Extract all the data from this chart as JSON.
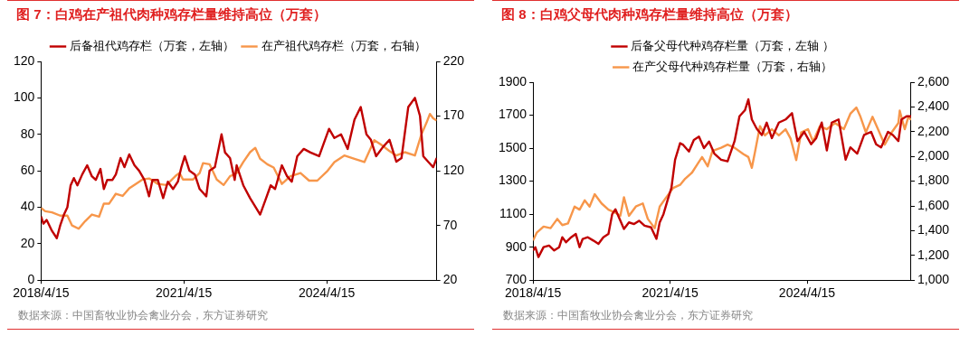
{
  "chart_data": [
    {
      "type": "line",
      "title": "图 7：白鸡在产祖代肉种鸡存栏量维持高位（万套）",
      "annotations": [
        "数据来源：中国畜牧业协会禽业分会，东方证券研究"
      ],
      "legend": "top",
      "grid": false,
      "xlim": [
        "2018-04-15",
        "2026-08-07"
      ],
      "xticks": [
        {
          "value": "2018-04-15",
          "label": "2018/4/15"
        },
        {
          "value": "2021-04-15",
          "label": "2021/4/15"
        },
        {
          "value": "2024-04-15",
          "label": "2024/4/15"
        }
      ],
      "ylim": [
        0,
        120
      ],
      "yticks": [
        0,
        20,
        40,
        60,
        80,
        100,
        120
      ],
      "y2lim": [
        20,
        220
      ],
      "y2ticks": [
        20,
        70,
        120,
        170,
        220
      ],
      "series": [
        {
          "name": "后备祖代鸡存栏（万套，左轴）",
          "color": "#c00000",
          "x": [
            "2018-04-15",
            "2018-05-03",
            "2018-05-28",
            "2018-07-08",
            "2018-08-14",
            "2018-09-09",
            "2018-10-08",
            "2018-11-03",
            "2018-11-28",
            "2018-12-23",
            "2019-01-19",
            "2019-02-25",
            "2019-04-04",
            "2019-05-10",
            "2019-06-09",
            "2019-07-15",
            "2019-08-10",
            "2019-09-05",
            "2019-10-15",
            "2019-11-10",
            "2019-12-16",
            "2020-01-15",
            "2020-02-21",
            "2020-04-01",
            "2020-05-07",
            "2020-06-16",
            "2020-07-22",
            "2020-08-17",
            "2020-09-27",
            "2020-11-07",
            "2020-12-13",
            "2021-01-22",
            "2021-02-28",
            "2021-03-27",
            "2021-04-22",
            "2021-05-28",
            "2021-07-08",
            "2021-08-14",
            "2021-10-04",
            "2021-10-29",
            "2021-12-09",
            "2022-01-29",
            "2022-02-25",
            "2022-04-04",
            "2022-05-10",
            "2022-05-25",
            "2022-07-15",
            "2022-09-05",
            "2022-10-26",
            "2022-11-21",
            "2023-01-01",
            "2023-02-10",
            "2023-03-16",
            "2023-05-07",
            "2023-06-16",
            "2023-07-22",
            "2023-09-02",
            "2023-10-22",
            "2023-12-13",
            "2024-02-17",
            "2024-03-23",
            "2024-05-03",
            "2024-06-13",
            "2024-08-03",
            "2024-09-23",
            "2024-11-14",
            "2025-01-01",
            "2025-02-14",
            "2025-03-20",
            "2025-04-29",
            "2025-06-20",
            "2025-08-10",
            "2025-10-01",
            "2025-11-10",
            "2026-01-01",
            "2026-02-21",
            "2026-04-01",
            "2026-04-26",
            "2026-06-02",
            "2026-07-11",
            "2026-08-07"
          ],
          "values": [
            35,
            31,
            33,
            27,
            23,
            30,
            36,
            40,
            52,
            56,
            52,
            58,
            63,
            57,
            55,
            61,
            50,
            55,
            55,
            58,
            67,
            62,
            69,
            63,
            60,
            55,
            46,
            55,
            55,
            45,
            54,
            50,
            54,
            62,
            68,
            60,
            58,
            50,
            46,
            60,
            62,
            80,
            70,
            67,
            55,
            63,
            52,
            45,
            39,
            36,
            44,
            52,
            50,
            63,
            57,
            54,
            68,
            72,
            70,
            68,
            75,
            83,
            78,
            80,
            72,
            88,
            95,
            80,
            77,
            68,
            73,
            77,
            65,
            67,
            95,
            100,
            90,
            68,
            65,
            62,
            67
          ]
        },
        {
          "name": "在产祖代鸡存栏（万套，右轴）",
          "color": "#f7964a",
          "axis": "y2",
          "x": [
            "2018-04-15",
            "2018-05-17",
            "2018-07-08",
            "2018-09-09",
            "2018-11-03",
            "2018-12-09",
            "2019-01-29",
            "2019-03-20",
            "2019-05-10",
            "2019-07-04",
            "2019-08-10",
            "2019-09-20",
            "2019-11-10",
            "2020-01-01",
            "2020-02-21",
            "2020-04-11",
            "2020-06-02",
            "2020-07-22",
            "2020-09-27",
            "2020-12-02",
            "2021-02-17",
            "2021-03-13",
            "2021-04-08",
            "2021-06-23",
            "2021-08-14",
            "2021-09-09",
            "2021-10-29",
            "2021-12-23",
            "2022-02-14",
            "2022-04-04",
            "2022-05-25",
            "2022-07-15",
            "2022-09-05",
            "2022-10-15",
            "2022-11-21",
            "2023-01-15",
            "2023-03-05",
            "2023-05-07",
            "2023-07-11",
            "2023-09-27",
            "2023-12-02",
            "2024-02-03",
            "2024-04-22",
            "2024-06-13",
            "2024-08-28",
            "2024-11-14",
            "2025-01-29",
            "2025-04-15",
            "2025-06-05",
            "2025-08-10",
            "2025-10-01",
            "2025-12-05",
            "2026-02-21",
            "2026-04-11",
            "2026-05-21",
            "2026-06-16",
            "2026-07-11",
            "2026-08-07"
          ],
          "values": [
            86,
            83,
            82,
            79,
            79,
            70,
            67,
            74,
            80,
            78,
            90,
            90,
            99,
            97,
            104,
            108,
            112,
            113,
            108,
            107,
            116,
            118,
            112,
            112,
            118,
            127,
            126,
            112,
            107,
            115,
            118,
            128,
            137,
            141,
            131,
            126,
            123,
            108,
            115,
            118,
            111,
            111,
            120,
            128,
            134,
            131,
            128,
            148,
            144,
            138,
            134,
            137,
            134,
            153,
            164,
            172,
            168,
            166
          ]
        }
      ]
    },
    {
      "type": "line",
      "title": "图 8：白鸡父母代肉种鸡存栏量维持高位（万套）",
      "annotations": [
        "数据来源：中国畜牧业协会禽业分会，东方证券研究"
      ],
      "legend": "top",
      "grid": false,
      "xlim": [
        "2018-04-15",
        "2026-07-26"
      ],
      "xticks": [
        {
          "value": "2018-04-15",
          "label": "2018/4/15"
        },
        {
          "value": "2021-04-15",
          "label": "2021/4/15"
        },
        {
          "value": "2024-04-15",
          "label": "2024/4/15"
        }
      ],
      "ylim": [
        700,
        1900
      ],
      "yticks": [
        700,
        900,
        1100,
        1300,
        1500,
        1700,
        1900
      ],
      "y2lim": [
        1000,
        2600
      ],
      "y2ticks": [
        {
          "value": 1000,
          "label": "1,000"
        },
        {
          "value": 1200,
          "label": "1,200"
        },
        {
          "value": 1400,
          "label": "1,400"
        },
        {
          "value": 1600,
          "label": "1,600"
        },
        {
          "value": 1800,
          "label": "1,800"
        },
        {
          "value": 2000,
          "label": "2,000"
        },
        {
          "value": 2200,
          "label": "2,200"
        },
        {
          "value": 2400,
          "label": "2,400"
        },
        {
          "value": 2600,
          "label": "2,600"
        }
      ],
      "series": [
        {
          "name": "后备父母代种鸡存栏量（万套，左轴 ）",
          "color": "#c00000",
          "x": [
            "2018-04-15",
            "2018-05-03",
            "2018-05-28",
            "2018-07-08",
            "2018-08-21",
            "2018-10-01",
            "2018-11-10",
            "2018-12-05",
            "2019-01-04",
            "2019-02-14",
            "2019-03-23",
            "2019-04-22",
            "2019-05-17",
            "2019-06-27",
            "2019-08-10",
            "2019-09-20",
            "2019-10-29",
            "2019-12-09",
            "2020-01-08",
            "2020-02-03",
            "2020-03-02",
            "2020-04-11",
            "2020-05-21",
            "2020-07-01",
            "2020-08-10",
            "2020-09-23",
            "2020-11-14",
            "2020-12-27",
            "2021-01-22",
            "2021-02-21",
            "2021-04-01",
            "2021-04-26",
            "2021-05-25",
            "2021-07-04",
            "2021-07-29",
            "2021-09-13",
            "2021-10-22",
            "2021-12-02",
            "2022-01-11",
            "2022-02-21",
            "2022-04-04",
            "2022-05-28",
            "2022-07-19",
            "2022-09-13",
            "2022-10-22",
            "2022-12-05",
            "2023-01-01",
            "2023-01-29",
            "2023-03-09",
            "2023-04-19",
            "2023-05-28",
            "2023-07-08",
            "2023-09-02",
            "2023-10-26",
            "2023-12-16",
            "2024-01-29",
            "2024-03-23",
            "2024-05-17",
            "2024-06-27",
            "2024-08-10",
            "2024-09-20",
            "2024-10-29",
            "2024-12-23",
            "2025-02-17",
            "2025-03-27",
            "2025-05-21",
            "2025-07-15",
            "2025-09-09",
            "2025-10-19",
            "2025-11-28",
            "2026-01-22",
            "2026-03-02",
            "2026-04-15",
            "2026-05-10",
            "2026-06-20",
            "2026-07-26"
          ],
          "values": [
            880,
            900,
            840,
            900,
            910,
            880,
            900,
            960,
            930,
            960,
            980,
            900,
            950,
            960,
            940,
            920,
            960,
            980,
            1100,
            1130,
            1080,
            1010,
            1050,
            1040,
            1060,
            1030,
            1020,
            950,
            1050,
            1100,
            1200,
            1260,
            1430,
            1530,
            1520,
            1480,
            1550,
            1570,
            1500,
            1540,
            1467,
            1430,
            1420,
            1543,
            1693,
            1730,
            1796,
            1674,
            1618,
            1580,
            1655,
            1561,
            1655,
            1674,
            1712,
            1543,
            1599,
            1524,
            1561,
            1655,
            1486,
            1655,
            1674,
            1430,
            1505,
            1467,
            1580,
            1599,
            1524,
            1505,
            1599,
            1580,
            1543,
            1674,
            1693,
            1693
          ]
        },
        {
          "name": "在产父母代种鸡存栏量（万套，右轴）",
          "color": "#f7964a",
          "axis": "y2",
          "x": [
            "2018-04-15",
            "2018-05-14",
            "2018-07-08",
            "2018-09-02",
            "2018-10-26",
            "2018-12-05",
            "2019-01-19",
            "2019-03-13",
            "2019-04-22",
            "2019-06-02",
            "2019-07-11",
            "2019-08-21",
            "2019-10-15",
            "2019-12-09",
            "2020-02-03",
            "2020-03-13",
            "2020-04-11",
            "2020-05-21",
            "2020-07-15",
            "2020-09-09",
            "2020-10-19",
            "2020-12-13",
            "2021-01-22",
            "2021-03-16",
            "2021-05-10",
            "2021-07-04",
            "2021-08-14",
            "2021-10-08",
            "2021-11-17",
            "2021-12-27",
            "2022-02-10",
            "2022-03-20",
            "2022-05-28",
            "2022-07-19",
            "2022-09-13",
            "2022-11-21",
            "2023-01-01",
            "2023-01-29",
            "2023-02-25",
            "2023-04-04",
            "2023-05-14",
            "2023-07-08",
            "2023-09-02",
            "2023-10-26",
            "2023-12-05",
            "2024-01-19",
            "2024-02-28",
            "2024-04-22",
            "2024-06-02",
            "2024-07-26",
            "2024-09-20",
            "2024-11-25",
            "2025-02-03",
            "2025-03-27",
            "2025-05-14",
            "2025-06-16",
            "2025-07-29",
            "2025-09-20",
            "2025-11-03",
            "2025-12-27",
            "2026-02-21",
            "2026-04-15",
            "2026-04-26",
            "2026-06-05",
            "2026-07-04",
            "2026-07-26"
          ],
          "values": [
            1320,
            1383,
            1433,
            1420,
            1495,
            1445,
            1458,
            1595,
            1570,
            1645,
            1595,
            1695,
            1620,
            1570,
            1545,
            1520,
            1670,
            1520,
            1595,
            1620,
            1495,
            1420,
            1595,
            1670,
            1745,
            1770,
            1820,
            1870,
            1933,
            1995,
            1920,
            2045,
            2070,
            2095,
            2070,
            2020,
            1995,
            1908,
            2045,
            2245,
            2170,
            2220,
            2170,
            2220,
            2145,
            1970,
            2195,
            2220,
            2120,
            2245,
            2220,
            2270,
            2220,
            2345,
            2395,
            2320,
            2195,
            2320,
            2220,
            2095,
            2195,
            2270,
            2370,
            2220,
            2320,
            2295
          ]
        }
      ]
    }
  ]
}
